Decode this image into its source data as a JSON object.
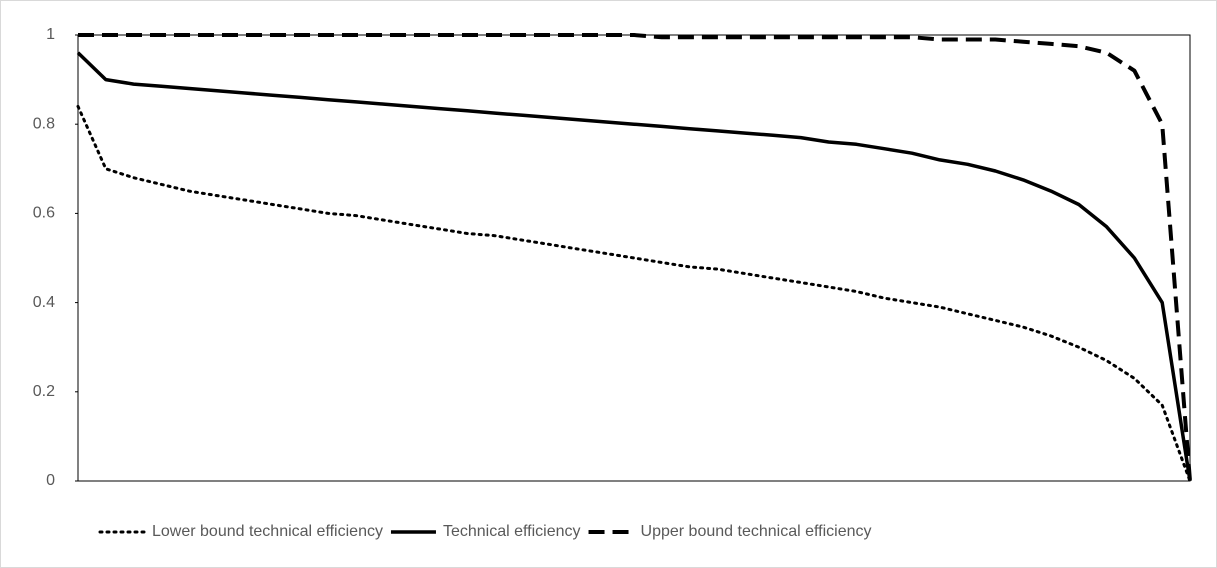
{
  "chart_data": {
    "type": "line",
    "categories": [
      null,
      null,
      null,
      null,
      null,
      null,
      null,
      null,
      null,
      null,
      null,
      null,
      null,
      null,
      null,
      null,
      null,
      null,
      null,
      null,
      null,
      null,
      null,
      null,
      null,
      null,
      null,
      null,
      null,
      null,
      null,
      null,
      null,
      null,
      null,
      null,
      null,
      null,
      null,
      null,
      null
    ],
    "series": [
      {
        "name": "Lower bound technical efficiency",
        "color": "#000000",
        "style": "dotted",
        "values": [
          0.84,
          0.7,
          0.68,
          0.665,
          0.65,
          0.64,
          0.63,
          0.62,
          0.61,
          0.6,
          0.595,
          0.585,
          0.575,
          0.565,
          0.555,
          0.55,
          0.54,
          0.53,
          0.52,
          0.51,
          0.5,
          0.49,
          0.48,
          0.475,
          0.465,
          0.455,
          0.445,
          0.435,
          0.425,
          0.41,
          0.4,
          0.39,
          0.375,
          0.36,
          0.345,
          0.325,
          0.3,
          0.27,
          0.23,
          0.17,
          0.0
        ]
      },
      {
        "name": "Technical efficiency",
        "color": "#000000",
        "style": "solid",
        "values": [
          0.96,
          0.9,
          0.89,
          0.885,
          0.88,
          0.875,
          0.87,
          0.865,
          0.86,
          0.855,
          0.85,
          0.845,
          0.84,
          0.835,
          0.83,
          0.825,
          0.82,
          0.815,
          0.81,
          0.805,
          0.8,
          0.795,
          0.79,
          0.785,
          0.78,
          0.775,
          0.77,
          0.76,
          0.755,
          0.745,
          0.735,
          0.72,
          0.71,
          0.695,
          0.675,
          0.65,
          0.62,
          0.57,
          0.5,
          0.4,
          0.0
        ]
      },
      {
        "name": "Upper bound technical efficiency",
        "color": "#000000",
        "style": "dashed",
        "values": [
          1.0,
          1.0,
          1.0,
          1.0,
          1.0,
          1.0,
          1.0,
          1.0,
          1.0,
          1.0,
          1.0,
          1.0,
          1.0,
          1.0,
          1.0,
          1.0,
          1.0,
          1.0,
          1.0,
          1.0,
          1.0,
          0.995,
          0.995,
          0.995,
          0.995,
          0.995,
          0.995,
          0.995,
          0.995,
          0.995,
          0.995,
          0.99,
          0.99,
          0.99,
          0.985,
          0.98,
          0.975,
          0.96,
          0.92,
          0.8,
          0.0
        ]
      }
    ],
    "ylim": [
      0,
      1
    ],
    "yticks": [
      0,
      0.2,
      0.4,
      0.6,
      0.8,
      1
    ],
    "grid": false,
    "legend": "bottom"
  }
}
